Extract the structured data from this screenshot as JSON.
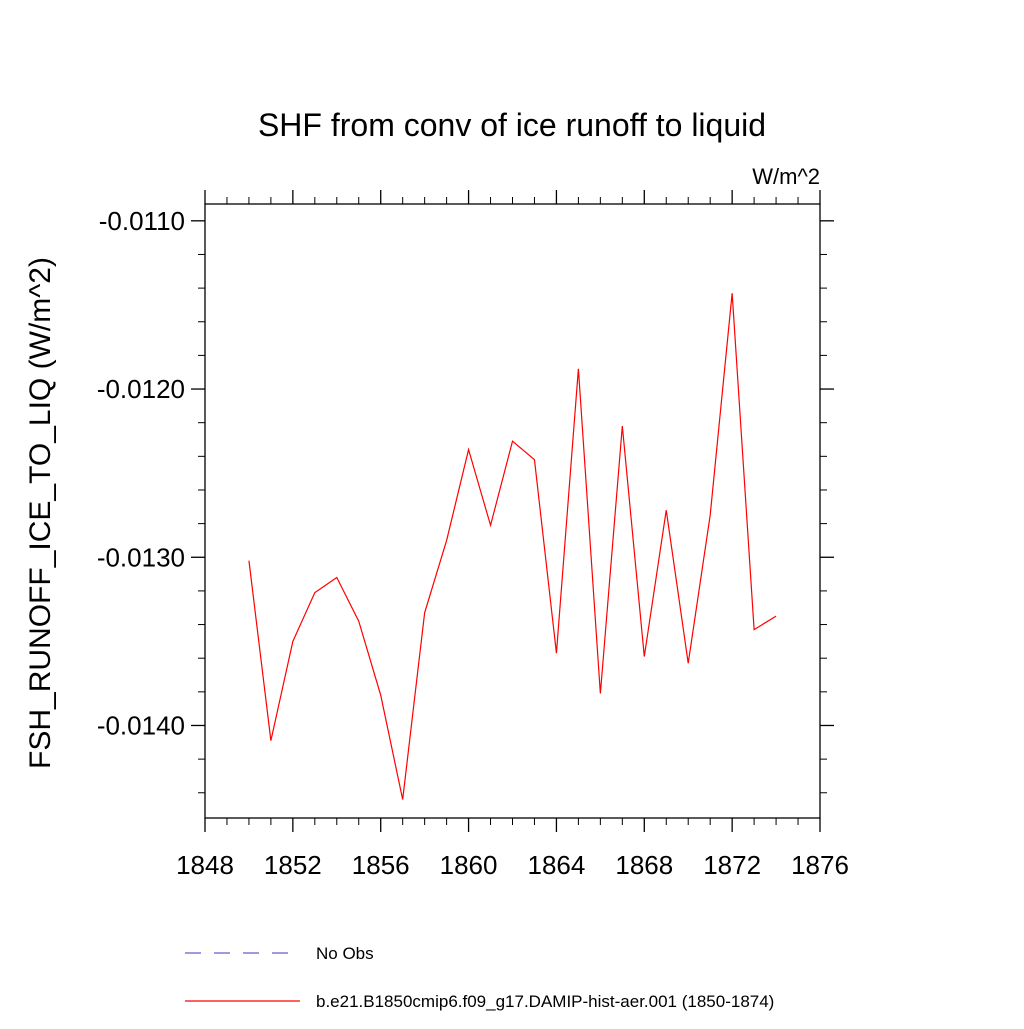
{
  "chart_data": {
    "type": "line",
    "title": "SHF from conv of ice runoff to liquid",
    "units_label": "W/m^2",
    "ylabel": "FSH_RUNOFF_ICE_TO_LIQ  (W/m^2)",
    "xlabel": "",
    "xlim": [
      1848,
      1876
    ],
    "ylim": [
      -0.01455,
      -0.0109
    ],
    "x_ticks": [
      1848,
      1852,
      1856,
      1860,
      1864,
      1868,
      1872,
      1876
    ],
    "x_tick_labels": [
      "1848",
      "1852",
      "1856",
      "1860",
      "1864",
      "1868",
      "1872",
      "1876"
    ],
    "y_ticks": [
      -0.011,
      -0.012,
      -0.013,
      -0.014
    ],
    "y_tick_labels": [
      "-0.0110",
      "-0.0120",
      "-0.0130",
      "-0.0140"
    ],
    "grid": false,
    "legend_position": "bottom",
    "series": [
      {
        "name": "b.e21.B1850cmip6.f09_g17.DAMIP-hist-aer.001 (1850-1874)",
        "color": "#ff0000",
        "style": "solid",
        "x": [
          1850,
          1851,
          1852,
          1853,
          1854,
          1855,
          1856,
          1857,
          1858,
          1859,
          1860,
          1861,
          1862,
          1863,
          1864,
          1865,
          1866,
          1867,
          1868,
          1869,
          1870,
          1871,
          1872,
          1873,
          1874
        ],
        "y": [
          -0.01302,
          -0.01409,
          -0.0135,
          -0.01321,
          -0.01312,
          -0.01338,
          -0.01382,
          -0.01444,
          -0.01333,
          -0.0129,
          -0.01236,
          -0.01281,
          -0.01231,
          -0.01242,
          -0.01357,
          -0.01188,
          -0.01381,
          -0.01222,
          -0.01359,
          -0.01272,
          -0.01363,
          -0.01275,
          -0.01143,
          -0.01343,
          -0.01335
        ]
      }
    ],
    "legend": [
      {
        "label": "No Obs",
        "color": "#6a5acd",
        "style": "dashed"
      },
      {
        "label": "b.e21.B1850cmip6.f09_g17.DAMIP-hist-aer.001 (1850-1874)",
        "color": "#ff0000",
        "style": "solid"
      }
    ]
  }
}
